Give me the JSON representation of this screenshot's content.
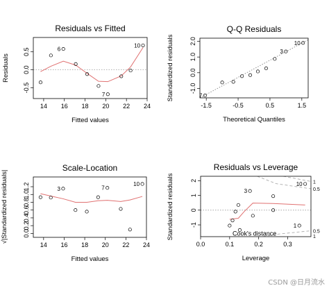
{
  "watermark": "CSDN @日月流水",
  "chart_data": [
    {
      "type": "scatter",
      "title": "Residuals vs Fitted",
      "xlabel": "Fitted values",
      "ylabel": "Residuals",
      "xlim": [
        13,
        24
      ],
      "ylim": [
        -0.8,
        0.9
      ],
      "xticks": [
        14,
        16,
        18,
        20,
        22,
        24
      ],
      "yticks": [
        -0.5,
        0.0,
        0.5
      ],
      "ytick_labels": [
        "-0.5",
        "0.0",
        "0.5"
      ],
      "reference_line": {
        "y": 0,
        "style": "dotted"
      },
      "points": [
        {
          "x": 13.7,
          "y": -0.35
        },
        {
          "x": 14.7,
          "y": 0.4
        },
        {
          "x": 15.9,
          "y": 0.58,
          "label": "6"
        },
        {
          "x": 17.1,
          "y": 0.16
        },
        {
          "x": 18.2,
          "y": -0.12
        },
        {
          "x": 19.3,
          "y": -0.45
        },
        {
          "x": 20.2,
          "y": -0.68,
          "label": "7"
        },
        {
          "x": 21.5,
          "y": -0.18
        },
        {
          "x": 22.4,
          "y": -0.02
        },
        {
          "x": 23.6,
          "y": 0.68,
          "label": "10"
        }
      ],
      "smoother": {
        "color": "#e07070",
        "x": [
          13.7,
          14.7,
          15.9,
          17.1,
          18.2,
          19.3,
          20.2,
          21.5,
          22.4,
          23.6
        ],
        "y": [
          -0.05,
          0.1,
          0.24,
          0.13,
          -0.1,
          -0.32,
          -0.33,
          -0.17,
          0.08,
          0.62
        ]
      }
    },
    {
      "type": "scatter",
      "title": "Q-Q Residuals",
      "xlabel": "Theoretical Quantiles",
      "ylabel": "Standardized residuals",
      "xlim": [
        -1.7,
        1.7
      ],
      "ylim": [
        -1.6,
        2.2
      ],
      "xticks": [
        -1.5,
        -0.5,
        0.5,
        1.5
      ],
      "xtick_labels": [
        "-1.5",
        "-0.5",
        "0.5",
        "1.5"
      ],
      "yticks": [
        -1.0,
        0.0,
        1.0,
        2.0
      ],
      "ytick_labels": [
        "-1.0",
        "0.0",
        "1.0",
        "2.0"
      ],
      "reference_line": {
        "from": [
          -1.7,
          -1.6
        ],
        "to": [
          1.7,
          2.1
        ],
        "style": "dotted"
      },
      "points": [
        {
          "x": -1.54,
          "y": -1.45,
          "label": "7"
        },
        {
          "x": -1.0,
          "y": -0.62
        },
        {
          "x": -0.65,
          "y": -0.58
        },
        {
          "x": -0.38,
          "y": -0.22
        },
        {
          "x": -0.12,
          "y": -0.15
        },
        {
          "x": 0.12,
          "y": 0.08
        },
        {
          "x": 0.38,
          "y": 0.28
        },
        {
          "x": 0.65,
          "y": 0.88
        },
        {
          "x": 1.0,
          "y": 1.35,
          "label": "3"
        },
        {
          "x": 1.54,
          "y": 1.9,
          "label": "10"
        }
      ]
    },
    {
      "type": "scatter",
      "title": "Scale-Location",
      "xlabel": "Fitted values",
      "ylabel": "√|Standardized residuals|",
      "xlim": [
        13,
        24
      ],
      "ylim": [
        -0.1,
        1.45
      ],
      "xticks": [
        14,
        16,
        18,
        20,
        22,
        24
      ],
      "yticks": [
        0.0,
        0.2,
        0.4,
        0.6,
        0.8,
        1.0,
        1.2
      ],
      "ytick_labels": [
        "0.0",
        "0.2",
        "0.4",
        "0.6",
        "0.8",
        "1.0",
        "1.2"
      ],
      "points": [
        {
          "x": 13.7,
          "y": 0.93
        },
        {
          "x": 14.7,
          "y": 0.92
        },
        {
          "x": 15.9,
          "y": 1.15,
          "label": "3"
        },
        {
          "x": 17.1,
          "y": 0.6
        },
        {
          "x": 18.2,
          "y": 0.56
        },
        {
          "x": 19.3,
          "y": 0.93
        },
        {
          "x": 20.2,
          "y": 1.17,
          "label": "7"
        },
        {
          "x": 21.5,
          "y": 0.63
        },
        {
          "x": 22.4,
          "y": 0.1
        },
        {
          "x": 23.6,
          "y": 1.27,
          "label": "10"
        }
      ],
      "smoother": {
        "color": "#e07070",
        "x": [
          13.7,
          14.7,
          15.9,
          17.1,
          18.2,
          19.3,
          20.2,
          21.5,
          22.4,
          23.6
        ],
        "y": [
          1.02,
          0.96,
          0.89,
          0.8,
          0.8,
          0.84,
          0.85,
          0.82,
          0.86,
          0.95
        ]
      }
    },
    {
      "type": "scatter",
      "title": "Residuals vs Leverage",
      "xlabel": "Leverage",
      "ylabel": "Standardized residuals",
      "xlim": [
        0.0,
        0.38
      ],
      "ylim": [
        -1.8,
        2.3
      ],
      "xticks": [
        0.0,
        0.1,
        0.2,
        0.3
      ],
      "xtick_labels": [
        "0.0",
        "0.1",
        "0.2",
        "0.3"
      ],
      "yticks": [
        -1,
        0,
        1,
        2
      ],
      "ytick_labels": [
        "-1",
        "0",
        "1",
        "2"
      ],
      "reference_line": {
        "y": 0,
        "style": "dotted"
      },
      "points": [
        {
          "x": 0.1,
          "y": -1.05
        },
        {
          "x": 0.11,
          "y": -0.7
        },
        {
          "x": 0.12,
          "y": -0.1
        },
        {
          "x": 0.13,
          "y": 0.35
        },
        {
          "x": 0.135,
          "y": -1.35
        },
        {
          "x": 0.17,
          "y": 1.3,
          "label": "3"
        },
        {
          "x": 0.18,
          "y": -0.38
        },
        {
          "x": 0.25,
          "y": 0.95
        },
        {
          "x": 0.25,
          "y": 0.0
        },
        {
          "x": 0.34,
          "y": -1.05,
          "label": "1"
        },
        {
          "x": 0.36,
          "y": 1.78,
          "label": "10"
        }
      ],
      "smoother": {
        "color": "#e07070",
        "x": [
          0.1,
          0.13,
          0.15,
          0.18,
          0.25,
          0.36
        ],
        "y": [
          -0.62,
          -0.55,
          -0.1,
          0.48,
          0.45,
          0.35
        ]
      },
      "cooks_distance": {
        "label": "Cook's distance",
        "levels": [
          0.5,
          1
        ],
        "level_labels": [
          "0.5",
          "1"
        ],
        "upper": {
          "0.5": [
            [
              0.195,
              2.3
            ],
            [
              0.26,
              1.8
            ],
            [
              0.38,
              1.45
            ]
          ],
          "1": [
            [
              0.285,
              2.3
            ],
            [
              0.38,
              1.95
            ]
          ]
        },
        "lower": {
          "0.5": [
            [
              0.215,
              -1.8
            ],
            [
              0.27,
              -1.62
            ],
            [
              0.38,
              -1.4
            ]
          ]
        }
      }
    }
  ]
}
